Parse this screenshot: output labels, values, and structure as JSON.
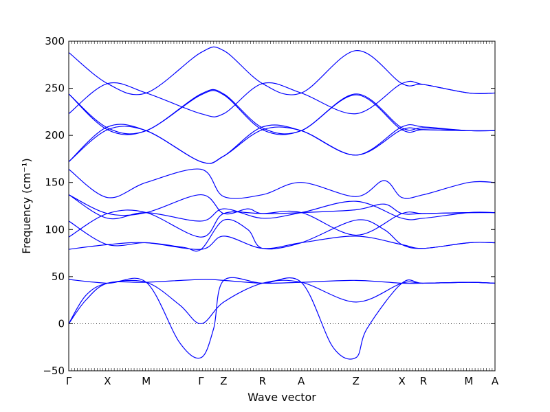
{
  "chart_data": {
    "type": "line",
    "title": "",
    "xlabel": "Wave vector",
    "ylabel": "Frequency (cm⁻¹)",
    "ylim": [
      -50,
      300
    ],
    "yticks": [
      -50,
      0,
      50,
      100,
      150,
      200,
      250,
      300
    ],
    "grid": false,
    "zero_line": true,
    "x_path_points": [
      "Γ",
      "X",
      "M",
      "Γ",
      "Z",
      "R",
      "A",
      "Z",
      "X",
      "R",
      "M",
      "A"
    ],
    "x_path_positions": [
      0,
      0.0909,
      0.1818,
      0.3103,
      0.3636,
      0.4545,
      0.5454,
      0.6738,
      0.7816,
      0.8322,
      0.9385,
      1.0
    ],
    "series": [
      {
        "segments": [
          [
            [
              0,
              0
            ],
            [
              0.04,
              25
            ],
            [
              0.0909,
              43
            ],
            [
              0.1818,
              44
            ],
            [
              0.3103,
              47
            ],
            [
              0.3636,
              46
            ],
            [
              0.4545,
              43
            ],
            [
              0.5454,
              44
            ],
            [
              0.6738,
              46
            ],
            [
              0.7816,
              43
            ],
            [
              0.8322,
              43
            ],
            [
              0.9385,
              44
            ],
            [
              1.0,
              43
            ]
          ]
        ]
      },
      {
        "segments": [
          [
            [
              0,
              0
            ],
            [
              0.04,
              30
            ],
            [
              0.0909,
              43
            ],
            [
              0.1818,
              44
            ],
            [
              0.26,
              20
            ],
            [
              0.3103,
              0
            ],
            [
              0.3636,
              23
            ],
            [
              0.4545,
              43
            ],
            [
              0.5454,
              44
            ],
            [
              0.6738,
              23
            ],
            [
              0.7816,
              43
            ],
            [
              0.8322,
              43
            ],
            [
              0.9385,
              44
            ],
            [
              1.0,
              43
            ]
          ]
        ]
      },
      {
        "segments": [
          [
            [
              0,
              47
            ],
            [
              0.0909,
              43
            ],
            [
              0.1818,
              44
            ],
            [
              0.26,
              -20
            ],
            [
              0.3103,
              -36
            ],
            [
              0.34,
              -5
            ],
            [
              0.3636,
              46
            ],
            [
              0.4545,
              43
            ],
            [
              0.5454,
              44
            ],
            [
              0.62,
              -25
            ],
            [
              0.6738,
              -36
            ],
            [
              0.7,
              -5
            ],
            [
              0.7816,
              43
            ],
            [
              0.8322,
              43
            ],
            [
              0.9385,
              44
            ],
            [
              1.0,
              43
            ]
          ]
        ]
      },
      {
        "segments": [
          [
            [
              0,
              79
            ],
            [
              0.0909,
              84
            ],
            [
              0.1818,
              86
            ],
            [
              0.3103,
              79
            ],
            [
              0.3636,
              93
            ],
            [
              0.4545,
              80
            ],
            [
              0.5454,
              86
            ],
            [
              0.6738,
              93
            ],
            [
              0.7816,
              84
            ],
            [
              0.8322,
              80
            ],
            [
              0.9385,
              86
            ],
            [
              1.0,
              86
            ]
          ]
        ]
      },
      {
        "segments": [
          [
            [
              0,
              109
            ],
            [
              0.0909,
              84
            ],
            [
              0.1818,
              86
            ],
            [
              0.27,
              81
            ],
            [
              0.3103,
              79
            ],
            [
              0.3636,
              110
            ],
            [
              0.42,
              100
            ],
            [
              0.4545,
              80
            ],
            [
              0.5454,
              86
            ],
            [
              0.6738,
              110
            ],
            [
              0.74,
              100
            ],
            [
              0.7816,
              84
            ],
            [
              0.8322,
              80
            ],
            [
              0.9385,
              86
            ],
            [
              1.0,
              86
            ]
          ]
        ]
      },
      {
        "segments": [
          [
            [
              0,
              92
            ],
            [
              0.0909,
              117
            ],
            [
              0.1818,
              118
            ],
            [
              0.3103,
              92
            ],
            [
              0.3636,
              117
            ],
            [
              0.4545,
              117
            ],
            [
              0.5454,
              118
            ],
            [
              0.6738,
              94
            ],
            [
              0.7816,
              117
            ],
            [
              0.8322,
              117
            ],
            [
              0.9385,
              118
            ],
            [
              1.0,
              118
            ]
          ]
        ]
      },
      {
        "segments": [
          [
            [
              0,
              137
            ],
            [
              0.0909,
              112
            ],
            [
              0.1818,
              118
            ],
            [
              0.3103,
              109
            ],
            [
              0.3636,
              122
            ],
            [
              0.4545,
              112
            ],
            [
              0.5454,
              118
            ],
            [
              0.6738,
              130
            ],
            [
              0.7816,
              112
            ],
            [
              0.8322,
              112
            ],
            [
              0.9385,
              118
            ],
            [
              1.0,
              118
            ]
          ]
        ]
      },
      {
        "segments": [
          [
            [
              0,
              137
            ],
            [
              0.0909,
              117
            ],
            [
              0.1818,
              118
            ],
            [
              0.3103,
              137
            ],
            [
              0.3636,
              117
            ],
            [
              0.42,
              122
            ],
            [
              0.4545,
              117
            ],
            [
              0.5454,
              118
            ],
            [
              0.6738,
              121
            ],
            [
              0.74,
              127
            ],
            [
              0.7816,
              117
            ],
            [
              0.8322,
              117
            ],
            [
              0.9385,
              118
            ],
            [
              1.0,
              118
            ]
          ]
        ]
      },
      {
        "segments": [
          [
            [
              0,
              164
            ],
            [
              0.0909,
              134
            ],
            [
              0.1818,
              150
            ],
            [
              0.3103,
              164
            ],
            [
              0.3636,
              135
            ],
            [
              0.4545,
              137
            ],
            [
              0.5454,
              150
            ],
            [
              0.6738,
              135
            ],
            [
              0.74,
              152
            ],
            [
              0.7816,
              134
            ],
            [
              0.8322,
              137
            ],
            [
              0.9385,
              150
            ],
            [
              1.0,
              150
            ]
          ]
        ]
      },
      {
        "segments": [
          [
            [
              0,
              172
            ],
            [
              0.0909,
              206
            ],
            [
              0.1818,
              205
            ],
            [
              0.3103,
              172
            ],
            [
              0.3636,
              178
            ],
            [
              0.4545,
              206
            ],
            [
              0.5454,
              205
            ],
            [
              0.6738,
              179
            ],
            [
              0.7816,
              206
            ],
            [
              0.8322,
              206
            ],
            [
              0.9385,
              205
            ],
            [
              1.0,
              205
            ]
          ]
        ]
      },
      {
        "segments": [
          [
            [
              0,
              172
            ],
            [
              0.0909,
              209
            ],
            [
              0.1818,
              205
            ],
            [
              0.3103,
              172
            ],
            [
              0.3636,
              178
            ],
            [
              0.4545,
              209
            ],
            [
              0.5454,
              205
            ],
            [
              0.6738,
              179
            ],
            [
              0.7816,
              209
            ],
            [
              0.8322,
              209
            ],
            [
              0.9385,
              205
            ],
            [
              1.0,
              205
            ]
          ]
        ]
      },
      {
        "segments": [
          [
            [
              0,
              244
            ],
            [
              0.0909,
              208
            ],
            [
              0.1818,
              205
            ],
            [
              0.3103,
              244
            ],
            [
              0.3636,
              244
            ],
            [
              0.4545,
              208
            ],
            [
              0.5454,
              205
            ],
            [
              0.6738,
              244
            ],
            [
              0.7816,
              208
            ],
            [
              0.8322,
              208
            ],
            [
              0.9385,
              205
            ],
            [
              1.0,
              205
            ]
          ]
        ]
      },
      {
        "segments": [
          [
            [
              0,
              244
            ],
            [
              0.0909,
              206
            ],
            [
              0.1818,
              205
            ],
            [
              0.3103,
              243
            ],
            [
              0.3636,
              243
            ],
            [
              0.4545,
              206
            ],
            [
              0.5454,
              205
            ],
            [
              0.6738,
              243
            ],
            [
              0.7816,
              206
            ],
            [
              0.8322,
              206
            ],
            [
              0.9385,
              205
            ],
            [
              1.0,
              205
            ]
          ]
        ]
      },
      {
        "segments": [
          [
            [
              0,
              223
            ],
            [
              0.0909,
              255
            ],
            [
              0.1818,
              245
            ],
            [
              0.3103,
              223
            ],
            [
              0.3636,
              223
            ],
            [
              0.4545,
              255
            ],
            [
              0.5454,
              245
            ],
            [
              0.6738,
              223
            ],
            [
              0.7816,
              255
            ],
            [
              0.8322,
              254
            ],
            [
              0.9385,
              245
            ],
            [
              1.0,
              245
            ]
          ]
        ]
      },
      {
        "segments": [
          [
            [
              0,
              288
            ],
            [
              0.0909,
              255
            ],
            [
              0.1818,
              245
            ],
            [
              0.3103,
              288
            ],
            [
              0.3636,
              290
            ],
            [
              0.4545,
              255
            ],
            [
              0.5454,
              245
            ],
            [
              0.6738,
              290
            ],
            [
              0.7816,
              255
            ],
            [
              0.8322,
              254
            ],
            [
              0.9385,
              245
            ],
            [
              1.0,
              245
            ]
          ]
        ]
      }
    ]
  }
}
